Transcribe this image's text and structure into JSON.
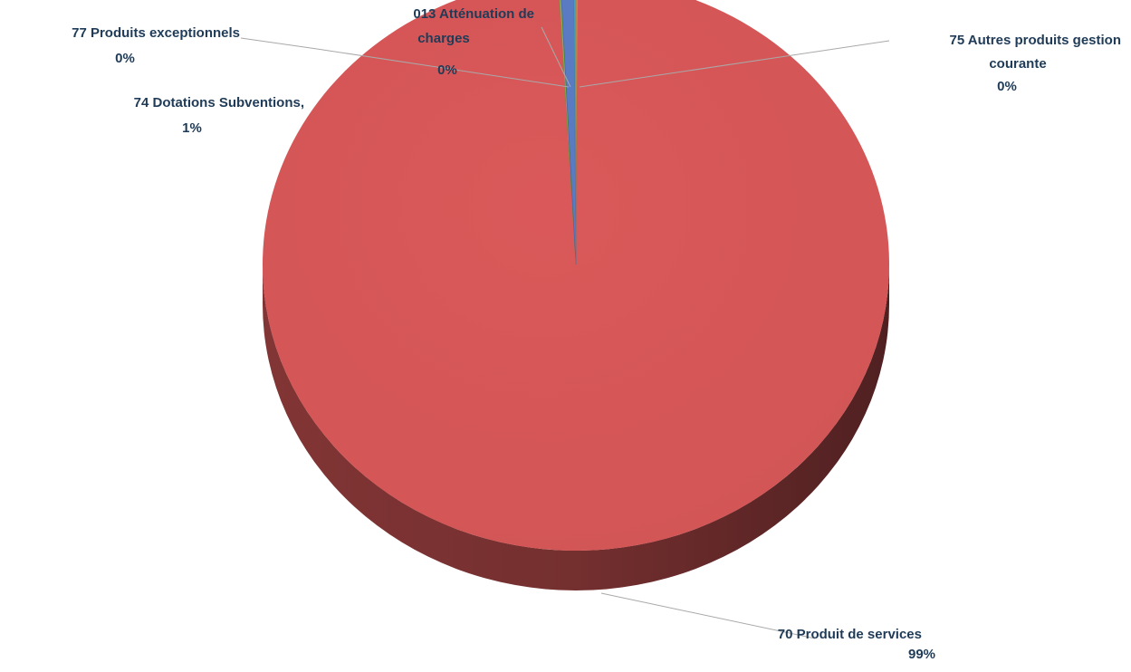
{
  "chart_data": {
    "type": "pie",
    "style": "3d",
    "legend": "none",
    "slices": [
      {
        "category": "70 Produit de services",
        "percent_label": "99%",
        "value": 99,
        "color": "#d25556"
      },
      {
        "category": "77 Produits exceptionnels",
        "percent_label": "0%",
        "value": 0.1,
        "color": "#8db04d"
      },
      {
        "category": "74 Dotations Subventions,",
        "percent_label": "1%",
        "value": 0.7,
        "color": "#5a7bc2"
      },
      {
        "category": "013 Atténuation de charges",
        "percent_label": "0%",
        "value": 0.1,
        "color": "#4fa9c6"
      },
      {
        "category": "75 Autres produits gestion courante",
        "percent_label": "0%",
        "value": 0.1,
        "color": "#ed8a2c"
      }
    ]
  }
}
